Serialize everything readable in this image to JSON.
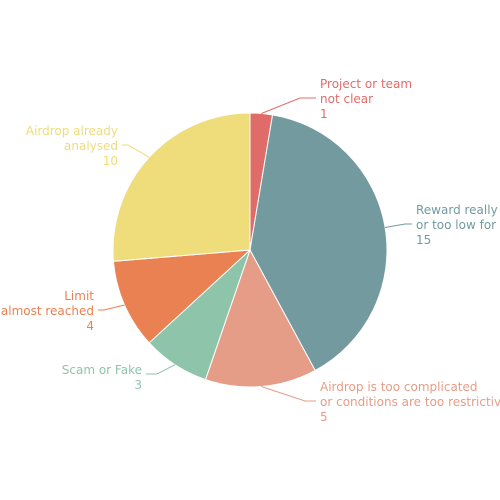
{
  "chart_data": {
    "type": "pie",
    "slices": [
      {
        "label_lines": [
          "Project or team",
          "not clear"
        ],
        "value": 1,
        "value_label": "1",
        "color": "#e06c6a"
      },
      {
        "label_lines": [
          "Reward really",
          "or too low for c"
        ],
        "value": 15,
        "value_label": "15",
        "color": "#739a9f"
      },
      {
        "label_lines": [
          "Airdrop is too complicated",
          "or conditions are too restrictiv"
        ],
        "value": 5,
        "value_label": "5",
        "color": "#e59d87"
      },
      {
        "label_lines": [
          "Scam or Fake"
        ],
        "value": 3,
        "value_label": "3",
        "color": "#8ec4aa"
      },
      {
        "label_lines": [
          "Limit",
          "almost reached"
        ],
        "value": 4,
        "value_label": "4",
        "color": "#e98152"
      },
      {
        "label_lines": [
          "Airdrop already",
          "analysed"
        ],
        "value": 10,
        "value_label": "10",
        "color": "#efdc7a"
      }
    ]
  }
}
